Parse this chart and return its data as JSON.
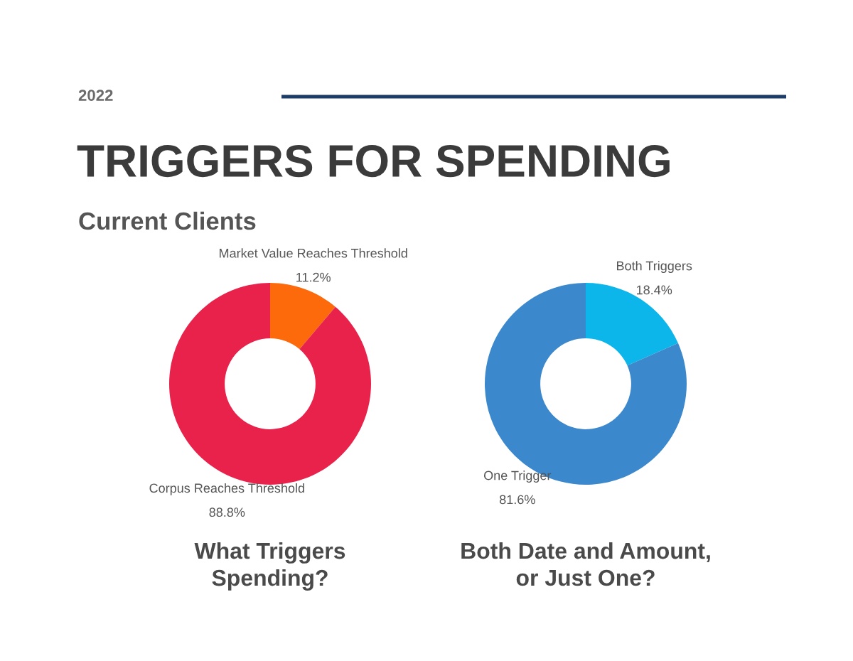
{
  "chart_data": [
    {
      "type": "other",
      "title": "TRIGGERS FOR SPENDING",
      "subtitle": "Current Clients",
      "annotations": [
        "2022"
      ]
    },
    {
      "type": "donut",
      "title": "What Triggers\nSpending?",
      "categories": [
        "Market Value Reaches Threshold",
        "Corpus Reaches Threshold"
      ],
      "values": [
        11.2,
        88.8
      ],
      "colors": [
        "#fc6a0c",
        "#e8224a"
      ],
      "value_labels": [
        "11.2%",
        "88.8%"
      ]
    },
    {
      "type": "donut",
      "title": "Both Date and Amount,\nor Just One?",
      "categories": [
        "Both Triggers",
        "One Trigger"
      ],
      "values": [
        18.4,
        81.6
      ],
      "colors": [
        "#0cb6ea",
        "#3b88cc"
      ],
      "value_labels": [
        "18.4%",
        "81.6%"
      ]
    }
  ]
}
